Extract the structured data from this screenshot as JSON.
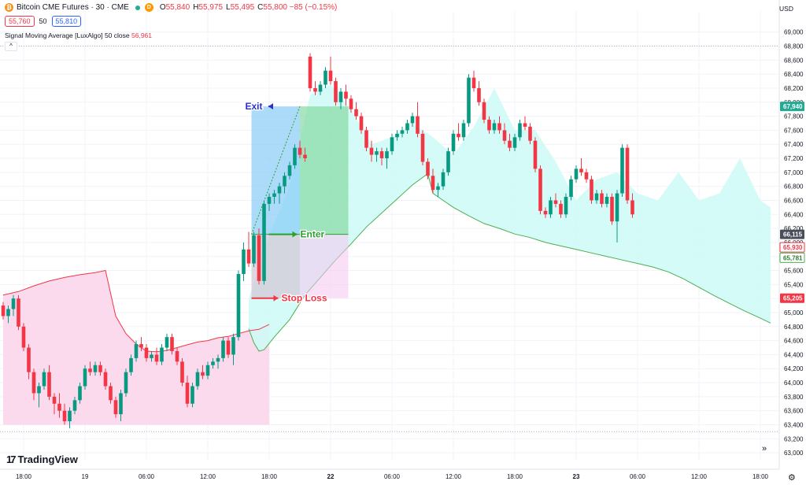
{
  "header": {
    "instrument": "Bitcoin CME Futures · 30 · CME",
    "coin_glyph": "₿",
    "d_badge": "D",
    "o_label": "O",
    "o_value": "55,840",
    "h_label": "H",
    "h_value": "55,975",
    "l_label": "L",
    "l_value": "55,495",
    "c_label": "C",
    "c_value": "55,800 −85 (−0.15%)",
    "sell_price": "55,760",
    "spread": "50",
    "buy_price": "55,810"
  },
  "indicator": {
    "name": "Signal Moving Average [LuxAlgo] 50 close",
    "value": "56,961",
    "collapse_glyph": "^"
  },
  "currency": "USD",
  "brand": {
    "mark": "17",
    "name": "TradingView"
  },
  "controls": {
    "scroll_glyph": "»",
    "settings_glyph": "⚙"
  },
  "chart_data": {
    "type": "candlestick",
    "colors": {
      "up": "#089981",
      "down": "#f23645",
      "ma_line": "#4caf50",
      "envelope_line": "#f23645",
      "fill_above": "#ccfaf6",
      "fill_below": "#fcd4ea",
      "exit_zone": "#7fc8f7",
      "enter_zone": "#7fd69b",
      "stop_zone": "#f6c7f1",
      "label_exit": "#2a30d1",
      "label_enter": "#2ca02c",
      "label_stop": "#f23645"
    },
    "y_axis": {
      "min": 62900,
      "max": 69300,
      "ticks": [
        "69,000",
        "68,800",
        "68,600",
        "68,400",
        "68,200",
        "68,000",
        "67,800",
        "67,600",
        "67,400",
        "67,200",
        "67,000",
        "66,800",
        "66,600",
        "66,400",
        "66,200",
        "66,000",
        "65,800",
        "65,600",
        "65,400",
        "65,200",
        "65,000",
        "64,800",
        "64,600",
        "64,400",
        "64,200",
        "64,000",
        "63,800",
        "63,600",
        "63,400",
        "63,200",
        "63,000"
      ]
    },
    "x_axis": {
      "ticks": [
        {
          "label": "18:00",
          "i": 4
        },
        {
          "label": "19",
          "i": 16
        },
        {
          "label": "06:00",
          "i": 28
        },
        {
          "label": "12:00",
          "i": 40
        },
        {
          "label": "18:00",
          "i": 52
        },
        {
          "label": "22",
          "i": 64,
          "bold": true
        },
        {
          "label": "06:00",
          "i": 76
        },
        {
          "label": "12:00",
          "i": 88
        },
        {
          "label": "18:00",
          "i": 100
        },
        {
          "label": "23",
          "i": 112,
          "bold": true
        },
        {
          "label": "06:00",
          "i": 124
        },
        {
          "label": "12:00",
          "i": 136
        },
        {
          "label": "18:00",
          "i": 148
        }
      ]
    },
    "dotted_levels": [
      68800,
      63300
    ],
    "price_tags": [
      {
        "label": "67,940",
        "value": 67940,
        "style": "green-fill"
      },
      {
        "label": "66,115",
        "value": 66115,
        "style": "dark-fill"
      },
      {
        "label": "65,930",
        "value": 65930,
        "style": "red-outline"
      },
      {
        "label": "65,781",
        "value": 65781,
        "style": "green-outline"
      },
      {
        "label": "65,205",
        "value": 65205,
        "style": "red-fill"
      }
    ],
    "candles": [
      [
        65100,
        65150,
        64900,
        64950
      ],
      [
        64950,
        65100,
        64850,
        65050
      ],
      [
        65050,
        65250,
        64950,
        65200
      ],
      [
        65200,
        65250,
        64750,
        64800
      ],
      [
        64800,
        64850,
        64450,
        64500
      ],
      [
        64500,
        64550,
        64050,
        64150
      ],
      [
        64150,
        64200,
        63750,
        63850
      ],
      [
        63850,
        64000,
        63650,
        63950
      ],
      [
        63950,
        64200,
        63900,
        64150
      ],
      [
        64150,
        64250,
        63750,
        63800
      ],
      [
        63800,
        63850,
        63550,
        63700
      ],
      [
        63700,
        63850,
        63500,
        63600
      ],
      [
        63600,
        63700,
        63400,
        63450
      ],
      [
        63450,
        63650,
        63350,
        63600
      ],
      [
        63600,
        63800,
        63550,
        63750
      ],
      [
        63750,
        64000,
        63700,
        63950
      ],
      [
        63950,
        64250,
        63900,
        64200
      ],
      [
        64200,
        64300,
        64100,
        64150
      ],
      [
        64150,
        64300,
        64100,
        64250
      ],
      [
        64250,
        64300,
        64100,
        64150
      ],
      [
        64150,
        64200,
        63900,
        63950
      ],
      [
        63950,
        64000,
        63700,
        63750
      ],
      [
        63750,
        63800,
        63500,
        63550
      ],
      [
        63550,
        63900,
        63450,
        63850
      ],
      [
        63850,
        64200,
        63800,
        64150
      ],
      [
        64150,
        64400,
        64100,
        64350
      ],
      [
        64350,
        64600,
        64300,
        64550
      ],
      [
        64550,
        64650,
        64450,
        64500
      ],
      [
        64500,
        64550,
        64300,
        64350
      ],
      [
        64350,
        64450,
        64300,
        64400
      ],
      [
        64400,
        64500,
        64250,
        64300
      ],
      [
        64300,
        64550,
        64250,
        64500
      ],
      [
        64500,
        64700,
        64450,
        64650
      ],
      [
        64650,
        64700,
        64400,
        64450
      ],
      [
        64450,
        64500,
        64250,
        64300
      ],
      [
        64300,
        64350,
        63950,
        64000
      ],
      [
        64000,
        64100,
        63650,
        63700
      ],
      [
        63700,
        64000,
        63650,
        63950
      ],
      [
        63950,
        64200,
        63900,
        64150
      ],
      [
        64150,
        64250,
        64050,
        64100
      ],
      [
        64100,
        64300,
        64050,
        64250
      ],
      [
        64250,
        64350,
        64200,
        64300
      ],
      [
        64300,
        64400,
        64200,
        64350
      ],
      [
        64350,
        64650,
        64300,
        64600
      ],
      [
        64600,
        64650,
        64350,
        64400
      ],
      [
        64400,
        64700,
        64250,
        64650
      ],
      [
        64650,
        65600,
        64600,
        65550
      ],
      [
        65550,
        66000,
        65450,
        65900
      ],
      [
        65900,
        66150,
        65650,
        65700
      ],
      [
        65700,
        66150,
        65650,
        66100
      ],
      [
        66100,
        66200,
        65400,
        65450
      ],
      [
        65450,
        66600,
        65400,
        66550
      ],
      [
        66550,
        66700,
        66450,
        66650
      ],
      [
        66650,
        66750,
        66550,
        66700
      ],
      [
        66700,
        66850,
        66550,
        66800
      ],
      [
        66800,
        67000,
        66700,
        66950
      ],
      [
        66950,
        67150,
        66900,
        67100
      ],
      [
        67100,
        67400,
        67050,
        67350
      ],
      [
        67350,
        67450,
        67200,
        67250
      ],
      [
        67250,
        67350,
        67150,
        67200
      ],
      [
        68650,
        68700,
        68150,
        68200
      ],
      [
        68200,
        68300,
        68100,
        68150
      ],
      [
        68150,
        68300,
        68100,
        68250
      ],
      [
        68250,
        68500,
        68200,
        68450
      ],
      [
        68450,
        68650,
        68250,
        68300
      ],
      [
        68300,
        68350,
        67950,
        68000
      ],
      [
        68000,
        68200,
        67900,
        68150
      ],
      [
        68150,
        68250,
        67950,
        68050
      ],
      [
        68050,
        68100,
        67850,
        67900
      ],
      [
        67900,
        68000,
        67750,
        67800
      ],
      [
        67800,
        67850,
        67550,
        67600
      ],
      [
        67600,
        67650,
        67300,
        67350
      ],
      [
        67350,
        67450,
        67150,
        67250
      ],
      [
        67250,
        67350,
        67150,
        67300
      ],
      [
        67300,
        67350,
        67100,
        67200
      ],
      [
        67200,
        67350,
        67050,
        67300
      ],
      [
        67300,
        67550,
        67250,
        67500
      ],
      [
        67500,
        67600,
        67450,
        67550
      ],
      [
        67550,
        67650,
        67500,
        67600
      ],
      [
        67600,
        67750,
        67550,
        67700
      ],
      [
        67700,
        67850,
        67650,
        67800
      ],
      [
        67800,
        68000,
        67500,
        67550
      ],
      [
        67550,
        67600,
        67100,
        67150
      ],
      [
        67150,
        67200,
        66900,
        66950
      ],
      [
        66950,
        67050,
        66700,
        66750
      ],
      [
        66750,
        66850,
        66650,
        66800
      ],
      [
        66800,
        67050,
        66750,
        67000
      ],
      [
        67000,
        67350,
        66950,
        67300
      ],
      [
        67300,
        67600,
        67250,
        67550
      ],
      [
        67550,
        67700,
        67450,
        67500
      ],
      [
        67500,
        67750,
        67450,
        67700
      ],
      [
        67700,
        68400,
        67650,
        68350
      ],
      [
        68350,
        68450,
        68150,
        68200
      ],
      [
        68200,
        68300,
        67950,
        68000
      ],
      [
        68000,
        68050,
        67700,
        67750
      ],
      [
        67750,
        67800,
        67550,
        67600
      ],
      [
        67600,
        67750,
        67550,
        67700
      ],
      [
        67700,
        67800,
        67550,
        67600
      ],
      [
        67600,
        67700,
        67400,
        67450
      ],
      [
        67450,
        67550,
        67300,
        67350
      ],
      [
        67350,
        67550,
        67300,
        67500
      ],
      [
        67500,
        67750,
        67450,
        67700
      ],
      [
        67700,
        67800,
        67600,
        67650
      ],
      [
        67650,
        67700,
        67400,
        67450
      ],
      [
        67450,
        67500,
        67000,
        67050
      ],
      [
        67050,
        67100,
        66400,
        66450
      ],
      [
        66450,
        66500,
        66350,
        66400
      ],
      [
        66400,
        66650,
        66350,
        66600
      ],
      [
        66600,
        66700,
        66500,
        66550
      ],
      [
        66550,
        66600,
        66350,
        66400
      ],
      [
        66400,
        66700,
        66350,
        66650
      ],
      [
        66650,
        66950,
        66600,
        66900
      ],
      [
        66900,
        67100,
        66850,
        67050
      ],
      [
        67050,
        67200,
        66950,
        67000
      ],
      [
        67000,
        67050,
        66850,
        66900
      ],
      [
        66900,
        66950,
        66550,
        66600
      ],
      [
        66600,
        66750,
        66550,
        66700
      ],
      [
        66700,
        66750,
        66500,
        66550
      ],
      [
        66550,
        66700,
        66500,
        66650
      ],
      [
        66650,
        66700,
        66250,
        66300
      ],
      [
        66300,
        66750,
        66000,
        66700
      ],
      [
        66700,
        67400,
        66650,
        67350
      ],
      [
        67350,
        67400,
        66550,
        66600
      ],
      [
        66600,
        66700,
        66350,
        66400
      ]
    ],
    "envelope_line": [
      [
        0,
        65250
      ],
      [
        3,
        65300
      ],
      [
        6,
        65380
      ],
      [
        9,
        65450
      ],
      [
        12,
        65500
      ],
      [
        15,
        65540
      ],
      [
        18,
        65570
      ],
      [
        20,
        65600
      ],
      [
        22,
        64950
      ],
      [
        24,
        64700
      ],
      [
        26,
        64550
      ],
      [
        28,
        64450
      ],
      [
        30,
        64440
      ],
      [
        32,
        64460
      ],
      [
        34,
        64500
      ],
      [
        36,
        64540
      ],
      [
        38,
        64580
      ],
      [
        40,
        64600
      ],
      [
        42,
        64640
      ],
      [
        44,
        64660
      ],
      [
        46,
        64700
      ],
      [
        48,
        64740
      ],
      [
        50,
        64760
      ],
      [
        52,
        64830
      ]
    ],
    "ma_line": [
      [
        48,
        64770
      ],
      [
        49,
        64570
      ],
      [
        50,
        64450
      ],
      [
        51,
        64470
      ],
      [
        53,
        64650
      ],
      [
        56,
        64900
      ],
      [
        59,
        65250
      ],
      [
        62,
        65500
      ],
      [
        65,
        65750
      ],
      [
        68,
        65980
      ],
      [
        71,
        66220
      ],
      [
        74,
        66420
      ],
      [
        77,
        66620
      ],
      [
        80,
        66820
      ],
      [
        83,
        66980
      ],
      [
        84,
        66700
      ],
      [
        86,
        66600
      ],
      [
        88,
        66500
      ],
      [
        91,
        66380
      ],
      [
        94,
        66270
      ],
      [
        97,
        66200
      ],
      [
        100,
        66120
      ],
      [
        103,
        66070
      ],
      [
        106,
        66000
      ],
      [
        109,
        65950
      ],
      [
        112,
        65900
      ],
      [
        115,
        65850
      ],
      [
        118,
        65800
      ],
      [
        121,
        65750
      ],
      [
        124,
        65700
      ],
      [
        127,
        65650
      ],
      [
        130,
        65580
      ],
      [
        133,
        65480
      ],
      [
        136,
        65360
      ],
      [
        139,
        65240
      ],
      [
        142,
        65130
      ],
      [
        145,
        65020
      ],
      [
        148,
        64920
      ],
      [
        150,
        64850
      ]
    ],
    "trade": {
      "exit": {
        "label": "Exit",
        "price": 67940,
        "i_start": 49,
        "i_end": 67
      },
      "enter": {
        "label": "Enter",
        "price": 66115,
        "i_start": 49,
        "i_end": 67
      },
      "stop": {
        "label": "Stop Loss",
        "price": 65205,
        "i_start": 49,
        "i_end": 67
      },
      "entry_bar": 58
    }
  }
}
